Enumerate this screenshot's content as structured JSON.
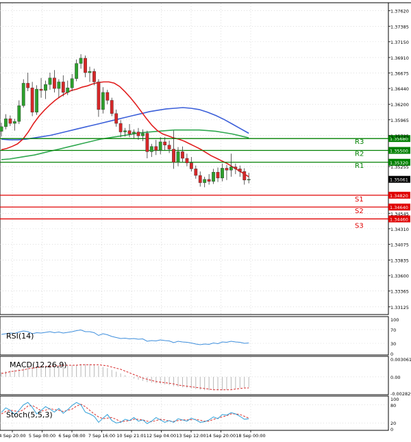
{
  "chart_data": {
    "type": "candlestick",
    "main": {
      "price_ticks": [
        "1.37620",
        "1.37385",
        "1.37150",
        "1.36910",
        "1.36675",
        "1.36440",
        "1.36200",
        "1.35965",
        "1.35725",
        "1.35255",
        "1.34545",
        "1.34310",
        "1.34075",
        "1.33835",
        "1.33600",
        "1.33365",
        "1.33125"
      ],
      "price_range": [
        1.3305,
        1.377
      ],
      "levels": [
        {
          "name": "R3",
          "value": 1.3568,
          "label": "1.35680",
          "color": "#008000"
        },
        {
          "name": "R2",
          "value": 1.355,
          "label": "1.35500",
          "color": "#008000"
        },
        {
          "name": "R1",
          "value": 1.3532,
          "label": "1.35320",
          "color": "#008000"
        },
        {
          "name": "S1",
          "value": 1.3482,
          "label": "1.34820",
          "color": "#e00000"
        },
        {
          "name": "S2",
          "value": 1.3464,
          "label": "1.34640",
          "color": "#e00000"
        },
        {
          "name": "S3",
          "value": 1.3446,
          "label": "1.34460",
          "color": "#e00000"
        }
      ],
      "current_price": {
        "value": 1.35061,
        "label": "1.35061"
      },
      "candles": [
        [
          1.3579,
          1.3592,
          1.3571,
          1.3586
        ],
        [
          1.3586,
          1.3605,
          1.3582,
          1.3598
        ],
        [
          1.3598,
          1.3603,
          1.3587,
          1.3591
        ],
        [
          1.3591,
          1.3598,
          1.358,
          1.3594
        ],
        [
          1.3594,
          1.3626,
          1.359,
          1.3618
        ],
        [
          1.3618,
          1.3658,
          1.3615,
          1.3652
        ],
        [
          1.3652,
          1.3668,
          1.364,
          1.3645
        ],
        [
          1.3645,
          1.3654,
          1.3602,
          1.3608
        ],
        [
          1.3608,
          1.3649,
          1.3604,
          1.3643
        ],
        [
          1.3643,
          1.366,
          1.363,
          1.3641
        ],
        [
          1.3641,
          1.3656,
          1.3628,
          1.365
        ],
        [
          1.365,
          1.3668,
          1.3642,
          1.366
        ],
        [
          1.366,
          1.3672,
          1.3638,
          1.3644
        ],
        [
          1.3644,
          1.3658,
          1.363,
          1.3654
        ],
        [
          1.3654,
          1.3664,
          1.3632,
          1.3638
        ],
        [
          1.3638,
          1.3656,
          1.3634,
          1.3645
        ],
        [
          1.3645,
          1.3666,
          1.364,
          1.3659
        ],
        [
          1.3659,
          1.3688,
          1.3655,
          1.3682
        ],
        [
          1.3682,
          1.3696,
          1.3674,
          1.369
        ],
        [
          1.369,
          1.3694,
          1.3661,
          1.3668
        ],
        [
          1.3668,
          1.3677,
          1.3654,
          1.367
        ],
        [
          1.367,
          1.3674,
          1.3649,
          1.3654
        ],
        [
          1.3654,
          1.3658,
          1.3601,
          1.3612
        ],
        [
          1.3612,
          1.3646,
          1.3606,
          1.3638
        ],
        [
          1.3638,
          1.3642,
          1.362,
          1.3626
        ],
        [
          1.3626,
          1.363,
          1.3602,
          1.3606
        ],
        [
          1.3606,
          1.3612,
          1.3586,
          1.3591
        ],
        [
          1.3591,
          1.3596,
          1.357,
          1.3578
        ],
        [
          1.3578,
          1.3584,
          1.3571,
          1.358
        ],
        [
          1.358,
          1.359,
          1.357,
          1.3575
        ],
        [
          1.3575,
          1.3582,
          1.3568,
          1.3578
        ],
        [
          1.3578,
          1.3584,
          1.3566,
          1.3572
        ],
        [
          1.3572,
          1.3582,
          1.3564,
          1.3576
        ],
        [
          1.3576,
          1.358,
          1.3538,
          1.3548
        ],
        [
          1.3548,
          1.356,
          1.354,
          1.3556
        ],
        [
          1.3556,
          1.3566,
          1.3543,
          1.355
        ],
        [
          1.355,
          1.357,
          1.3544,
          1.3563
        ],
        [
          1.3563,
          1.357,
          1.355,
          1.3558
        ],
        [
          1.3558,
          1.3565,
          1.3546,
          1.3552
        ],
        [
          1.3552,
          1.358,
          1.3522,
          1.3532
        ],
        [
          1.3532,
          1.3555,
          1.3526,
          1.3548
        ],
        [
          1.3548,
          1.3556,
          1.3532,
          1.3538
        ],
        [
          1.3538,
          1.3545,
          1.3526,
          1.3531
        ],
        [
          1.3531,
          1.354,
          1.3518,
          1.3522
        ],
        [
          1.3522,
          1.3527,
          1.3507,
          1.3512
        ],
        [
          1.3512,
          1.3518,
          1.3495,
          1.3501
        ],
        [
          1.3501,
          1.351,
          1.3494,
          1.3506
        ],
        [
          1.3506,
          1.3514,
          1.3498,
          1.3503
        ],
        [
          1.3503,
          1.3522,
          1.3499,
          1.3517
        ],
        [
          1.3517,
          1.3524,
          1.3502,
          1.3508
        ],
        [
          1.3508,
          1.353,
          1.3503,
          1.3523
        ],
        [
          1.3523,
          1.3528,
          1.3505,
          1.352
        ],
        [
          1.352,
          1.3545,
          1.351,
          1.3525
        ],
        [
          1.3525,
          1.353,
          1.3514,
          1.3522
        ],
        [
          1.3522,
          1.3527,
          1.351,
          1.3518
        ],
        [
          1.3518,
          1.3523,
          1.3498,
          1.3505
        ],
        [
          1.3505,
          1.3516,
          1.35,
          1.3506
        ]
      ],
      "ma_red": [
        1.3551,
        1.3553,
        1.3556,
        1.356,
        1.3567,
        1.3578,
        1.3591,
        1.3602,
        1.3611,
        1.3619,
        1.3626,
        1.3632,
        1.3637,
        1.3641,
        1.3643,
        1.3646,
        1.3648,
        1.3651,
        1.3653,
        1.3654,
        1.3654,
        1.3652,
        1.3647,
        1.3639,
        1.363,
        1.362,
        1.3609,
        1.3598,
        1.3588,
        1.358,
        1.3575,
        1.3572,
        1.3569,
        1.3567,
        1.3564,
        1.356,
        1.3556,
        1.3552,
        1.3547,
        1.3542,
        1.3538,
        1.3534,
        1.353,
        1.3525,
        1.352,
        1.3515,
        1.351
      ],
      "ma_blue": [
        1.3567,
        1.3566,
        1.3566,
        1.3567,
        1.3569,
        1.3571,
        1.3573,
        1.3576,
        1.3579,
        1.3582,
        1.3585,
        1.3588,
        1.3591,
        1.3594,
        1.3597,
        1.36,
        1.3603,
        1.3606,
        1.3609,
        1.3611,
        1.3613,
        1.3614,
        1.3615,
        1.3614,
        1.3612,
        1.3608,
        1.3603,
        1.3597,
        1.359,
        1.3583,
        1.3576
      ],
      "ma_green": [
        1.3536,
        1.3537,
        1.3539,
        1.3541,
        1.3543,
        1.3546,
        1.3549,
        1.3552,
        1.3555,
        1.3558,
        1.3561,
        1.3564,
        1.3567,
        1.3569,
        1.3571,
        1.3573,
        1.3575,
        1.3577,
        1.3578,
        1.3579,
        1.358,
        1.3581,
        1.3581,
        1.3581,
        1.3581,
        1.358,
        1.3579,
        1.3577,
        1.3575,
        1.3572,
        1.3569
      ]
    },
    "rsi": {
      "label": "RSI(14)",
      "ticks": [
        "100",
        "70",
        "30",
        "0"
      ],
      "values": [
        56,
        58,
        60,
        59,
        63,
        66,
        64,
        58,
        61,
        60,
        62,
        64,
        61,
        63,
        60,
        62,
        64,
        67,
        69,
        64,
        64,
        61,
        53,
        58,
        55,
        50,
        47,
        44,
        45,
        43,
        44,
        42,
        43,
        36,
        38,
        37,
        40,
        38,
        37,
        32,
        36,
        34,
        33,
        31,
        28,
        26,
        28,
        27,
        31,
        29,
        34,
        33,
        36,
        34,
        33,
        30,
        31
      ]
    },
    "macd": {
      "label": "MACD(12,26,9)",
      "ticks": [
        "0.003061",
        "0.00",
        "-0.002829"
      ],
      "range": [
        -0.002829,
        0.003061
      ],
      "hist": [
        0.0008,
        0.001,
        0.0011,
        0.0012,
        0.0014,
        0.0016,
        0.0017,
        0.0017,
        0.0018,
        0.0019,
        0.0019,
        0.002,
        0.002,
        0.002,
        0.002,
        0.002,
        0.002,
        0.0021,
        0.0022,
        0.0022,
        0.0022,
        0.0021,
        0.0019,
        0.0017,
        0.0015,
        0.0012,
        0.0009,
        0.0006,
        0.0003,
        0.0,
        -0.0003,
        -0.0005,
        -0.0007,
        -0.0009,
        -0.001,
        -0.0011,
        -0.0012,
        -0.0013,
        -0.0014,
        -0.0016,
        -0.0017,
        -0.0018,
        -0.0019,
        -0.002,
        -0.0021,
        -0.0022,
        -0.0023,
        -0.0023,
        -0.0023,
        -0.0023,
        -0.0023,
        -0.0022,
        -0.0021,
        -0.002,
        -0.0019,
        -0.0018,
        -0.0018
      ],
      "signal": [
        0.0006,
        0.0007,
        0.0009,
        0.001,
        0.0011,
        0.0012,
        0.0014,
        0.0015,
        0.0016,
        0.0017,
        0.0018,
        0.0018,
        0.0019,
        0.0019,
        0.002,
        0.002,
        0.002,
        0.002,
        0.0021,
        0.0021,
        0.0021,
        0.0021,
        0.0021,
        0.002,
        0.0019,
        0.0017,
        0.0015,
        0.0013,
        0.001,
        0.0007,
        0.0004,
        0.0001,
        -0.0002,
        -0.0004,
        -0.0006,
        -0.0008,
        -0.0009,
        -0.001,
        -0.0011,
        -0.0012,
        -0.0014,
        -0.0015,
        -0.0016,
        -0.0017,
        -0.0018,
        -0.0019,
        -0.002,
        -0.0021,
        -0.0022,
        -0.0022,
        -0.0022,
        -0.0022,
        -0.0022,
        -0.0021,
        -0.002,
        -0.0019,
        -0.0019
      ]
    },
    "stoch": {
      "label": "Stoch(5,5,3)",
      "ticks": [
        "100",
        "80",
        "20",
        "0"
      ],
      "k": [
        55,
        70,
        62,
        48,
        62,
        80,
        88,
        72,
        50,
        62,
        74,
        66,
        56,
        68,
        52,
        64,
        78,
        88,
        80,
        56,
        50,
        42,
        22,
        36,
        48,
        28,
        20,
        22,
        32,
        28,
        38,
        26,
        30,
        18,
        26,
        38,
        30,
        22,
        28,
        22,
        34,
        30,
        26,
        36,
        30,
        22,
        24,
        30,
        40,
        34,
        48,
        46,
        54,
        50,
        42,
        32,
        34
      ],
      "d": [
        50,
        58,
        62,
        60,
        57,
        64,
        76,
        78,
        70,
        60,
        62,
        68,
        64,
        62,
        58,
        62,
        66,
        76,
        82,
        74,
        62,
        50,
        40,
        34,
        36,
        38,
        32,
        24,
        26,
        28,
        32,
        32,
        30,
        26,
        24,
        28,
        32,
        30,
        26,
        25,
        28,
        30,
        30,
        31,
        32,
        29,
        26,
        26,
        32,
        36,
        40,
        44,
        50,
        50,
        48,
        42,
        36
      ]
    },
    "time_labels": [
      "4 Sep 20:00",
      "5 Sep 00:00",
      "6 Sep 08:00",
      "7 Sep 16:00",
      "10 Sep 21:01",
      "12 Sep 04:00",
      "13 Sep 12:00",
      "14 Sep 20:00",
      "18 Sep 00:00"
    ],
    "levels_side": [
      "R3",
      "R2",
      "R1",
      "S1",
      "S2",
      "S3"
    ]
  },
  "colors": {
    "bull": "#2ca02c",
    "bear": "#d62728",
    "ma_red": "#e11d1d",
    "ma_blue": "#3b5fd9",
    "ma_green": "#2fa84f",
    "rsi": "#3c8ddc",
    "stoch_k": "#2f9fd8",
    "stoch_d": "#d9302c",
    "grid": "#c8c8c8"
  }
}
